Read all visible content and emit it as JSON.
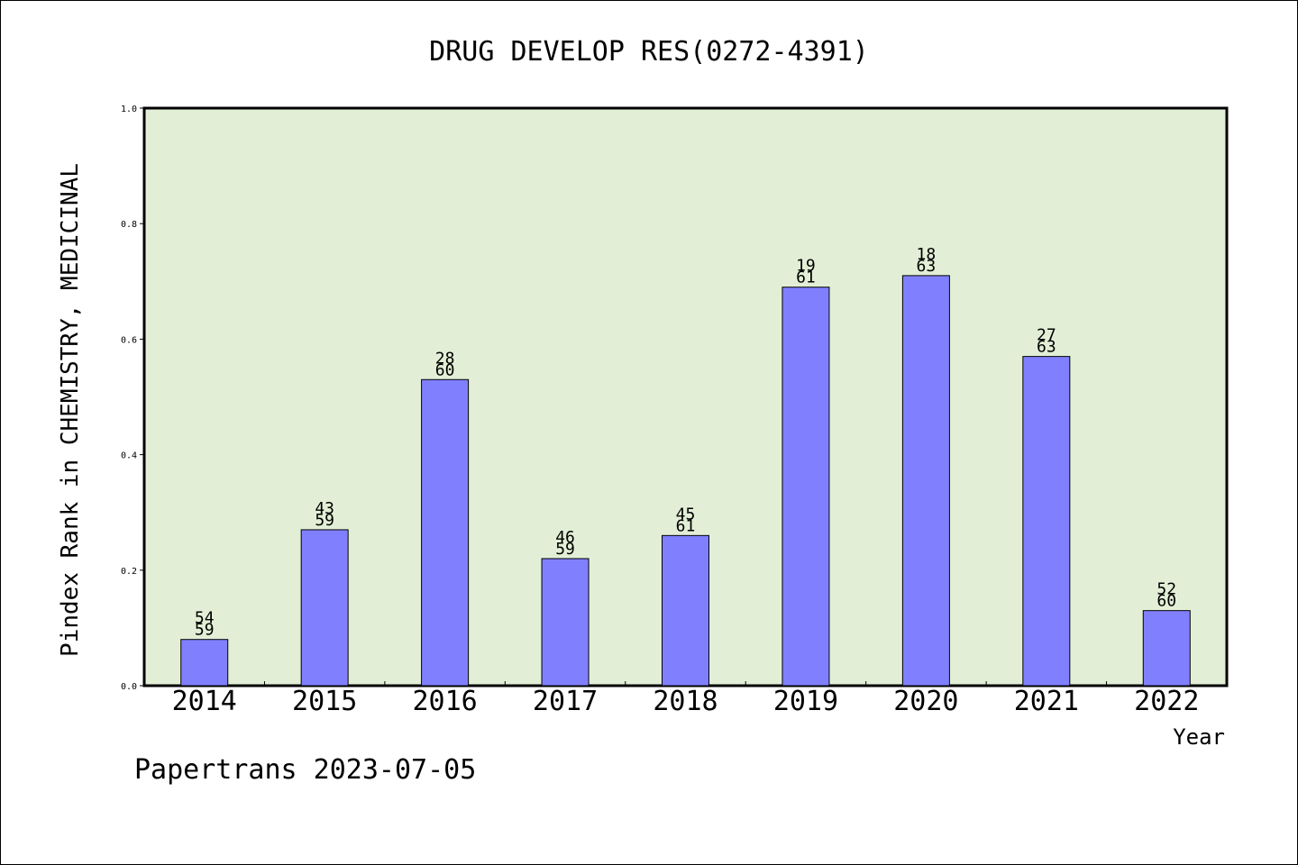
{
  "chart_data": {
    "type": "bar",
    "title": "DRUG DEVELOP RES(0272-4391)",
    "xlabel": "Year",
    "ylabel": "Pindex Rank in CHEMISTRY, MEDICINAL",
    "footer": "Papertrans 2023-07-05",
    "categories": [
      "2014",
      "2015",
      "2016",
      "2017",
      "2018",
      "2019",
      "2020",
      "2021",
      "2022"
    ],
    "values": [
      0.08,
      0.27,
      0.53,
      0.22,
      0.26,
      0.69,
      0.71,
      0.57,
      0.13
    ],
    "rank_labels": [
      "54",
      "43",
      "28",
      "46",
      "45",
      "19",
      "18",
      "27",
      "52"
    ],
    "total_labels": [
      "59",
      "59",
      "60",
      "59",
      "61",
      "61",
      "63",
      "63",
      "60"
    ],
    "ylim": [
      0,
      1
    ],
    "yticks": [
      "0.0",
      "0.2",
      "0.4",
      "0.6",
      "0.8",
      "1.0"
    ],
    "grid": false,
    "colors": {
      "plot_background": "#e2efd6",
      "bar_fill": "#8080ff",
      "bar_stroke": "#000000",
      "axis": "#000000",
      "text": "#000000"
    }
  }
}
